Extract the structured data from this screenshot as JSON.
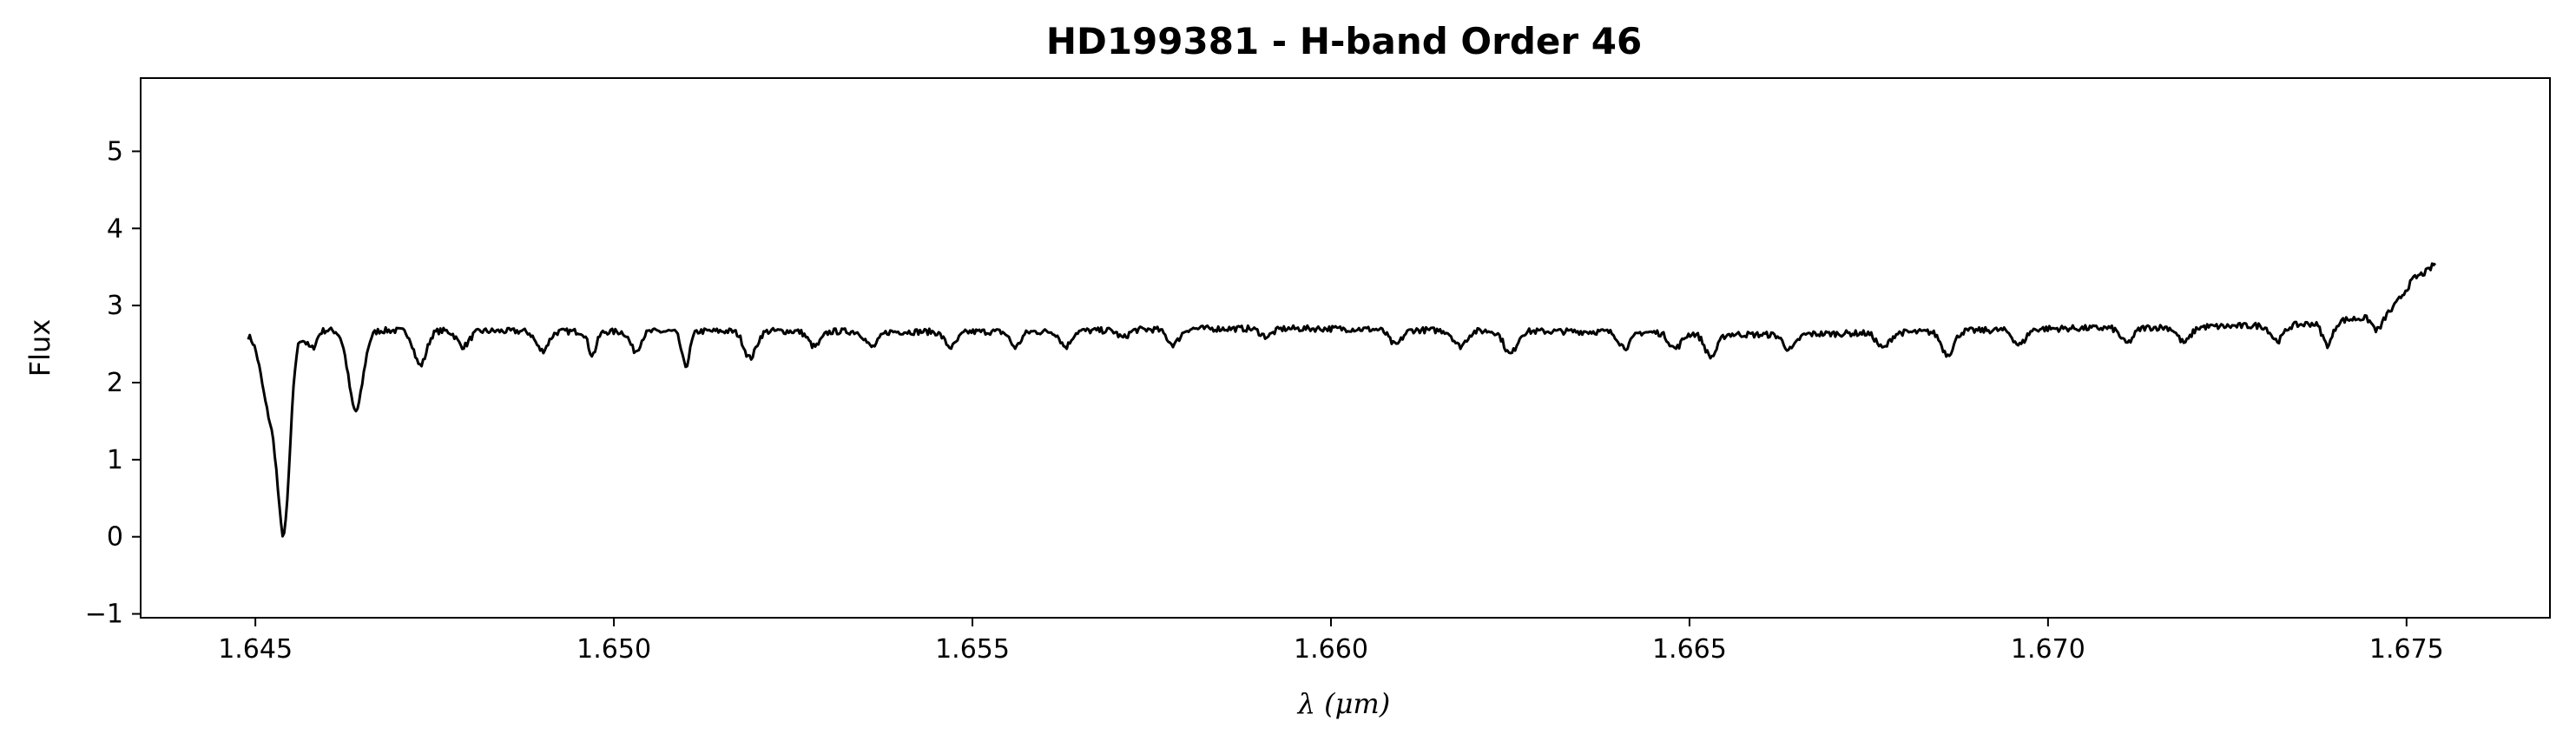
{
  "chart_data": {
    "type": "line",
    "title": "HD199381 - H-band Order 46",
    "xlabel_symbol": "λ",
    "xlabel_unit": "(μm)",
    "ylabel": "Flux",
    "xlim": [
      1.6434,
      1.677
    ],
    "ylim": [
      -1.05,
      5.95
    ],
    "x_ticks": [
      1.645,
      1.65,
      1.655,
      1.66,
      1.665,
      1.67,
      1.675
    ],
    "x_tick_labels": [
      "1.645",
      "1.650",
      "1.655",
      "1.660",
      "1.665",
      "1.670",
      "1.675"
    ],
    "y_ticks": [
      -1,
      0,
      1,
      2,
      3,
      4,
      5
    ],
    "y_tick_labels": [
      "−1",
      "0",
      "1",
      "2",
      "3",
      "4",
      "5"
    ],
    "grid": false,
    "legend": "none",
    "line_color": "#000000",
    "continuum": [
      [
        1.6449,
        2.63
      ],
      [
        1.646,
        2.68
      ],
      [
        1.648,
        2.67
      ],
      [
        1.65,
        2.66
      ],
      [
        1.652,
        2.67
      ],
      [
        1.654,
        2.66
      ],
      [
        1.656,
        2.66
      ],
      [
        1.658,
        2.7
      ],
      [
        1.66,
        2.7
      ],
      [
        1.662,
        2.67
      ],
      [
        1.664,
        2.66
      ],
      [
        1.666,
        2.62
      ],
      [
        1.668,
        2.65
      ],
      [
        1.67,
        2.7
      ],
      [
        1.672,
        2.72
      ],
      [
        1.6735,
        2.75
      ],
      [
        1.6745,
        2.85
      ],
      [
        1.6748,
        2.95
      ],
      [
        1.6751,
        3.35
      ],
      [
        1.6753,
        3.45
      ],
      [
        1.6754,
        3.55
      ]
    ],
    "absorption_lines": [
      [
        1.6452,
        1.0,
        0.00016
      ],
      [
        1.6454,
        2.4,
        0.00012
      ],
      [
        1.6457,
        0.1,
        8e-05
      ],
      [
        1.6458,
        0.2,
        8e-05
      ],
      [
        1.6464,
        1.05,
        0.00014
      ],
      [
        1.6473,
        0.45,
        0.00012
      ],
      [
        1.6479,
        0.2,
        0.00012
      ],
      [
        1.649,
        0.25,
        0.00012
      ],
      [
        1.6497,
        0.3,
        8e-05
      ],
      [
        1.6503,
        0.25,
        0.0001
      ],
      [
        1.651,
        0.45,
        8e-05
      ],
      [
        1.6519,
        0.35,
        0.00012
      ],
      [
        1.6528,
        0.2,
        0.00012
      ],
      [
        1.6536,
        0.2,
        0.00012
      ],
      [
        1.6547,
        0.2,
        0.00012
      ],
      [
        1.6556,
        0.2,
        0.0001
      ],
      [
        1.6563,
        0.2,
        0.0001
      ],
      [
        1.6571,
        0.1,
        0.0001
      ],
      [
        1.6578,
        0.2,
        0.00012
      ],
      [
        1.6591,
        0.1,
        0.00012
      ],
      [
        1.6609,
        0.2,
        0.00012
      ],
      [
        1.6618,
        0.2,
        0.00012
      ],
      [
        1.6625,
        0.3,
        0.00012
      ],
      [
        1.6641,
        0.2,
        0.00012
      ],
      [
        1.6648,
        0.2,
        0.00012
      ],
      [
        1.6653,
        0.3,
        0.00012
      ],
      [
        1.6664,
        0.2,
        0.00012
      ],
      [
        1.6677,
        0.2,
        0.00012
      ],
      [
        1.6686,
        0.3,
        0.00012
      ],
      [
        1.6696,
        0.2,
        0.00012
      ],
      [
        1.6711,
        0.2,
        0.00012
      ],
      [
        1.6719,
        0.2,
        0.00012
      ],
      [
        1.6732,
        0.2,
        0.00012
      ],
      [
        1.6739,
        0.3,
        0.0001
      ],
      [
        1.6746,
        0.2,
        0.0001
      ]
    ]
  }
}
